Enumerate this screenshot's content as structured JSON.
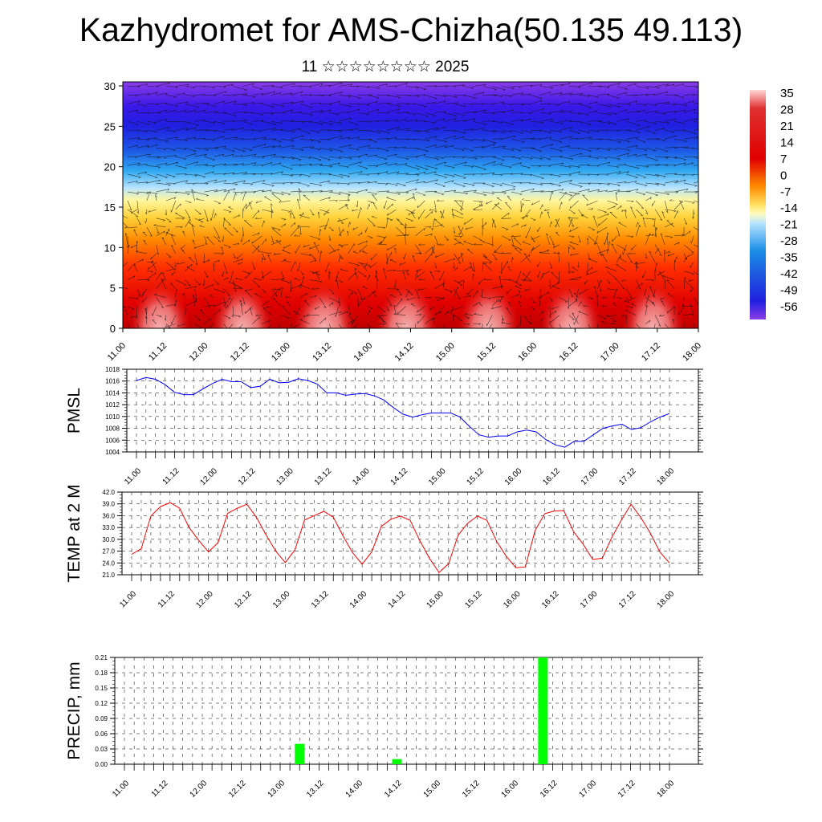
{
  "title": "Kazhydromet for AMS-Chizha(50.135 49.113)",
  "subtitle": "11 ☆☆☆☆☆☆☆☆ 2025",
  "colors": {
    "pmsl_line": "#0000ff",
    "temp_line": "#ff0000",
    "precip_bar": "#00ff00",
    "grid": "#000000"
  },
  "chart_data": [
    {
      "type": "heatmap",
      "name": "vertical-section",
      "y_ticks": [
        "0",
        "5",
        "10",
        "15",
        "20",
        "25",
        "30"
      ],
      "y_range": [
        0,
        30.5
      ],
      "x_ticks": [
        "11.00",
        "11.12",
        "12.00",
        "12.12",
        "13.00",
        "13.12",
        "14.00",
        "14.12",
        "15.00",
        "15.12",
        "16.00",
        "16.12",
        "17.00",
        "17.12",
        "18.00"
      ],
      "colorbar_labels": [
        "35",
        "28",
        "21",
        "14",
        "7",
        "0",
        "-7",
        "-14",
        "-21",
        "-28",
        "-35",
        "-42",
        "-49",
        "-56"
      ],
      "overlay": "wind vectors",
      "grid": false
    },
    {
      "type": "line",
      "name": "pmsl",
      "ylabel": "PMSL",
      "ylim": [
        1004,
        1018
      ],
      "y_ticks": [
        "1004",
        "1006",
        "1008",
        "1010",
        "1012",
        "1014",
        "1016",
        "1018"
      ],
      "x_ticks": [
        "11.00",
        "11.12",
        "12.00",
        "12.12",
        "13.00",
        "13.12",
        "14.00",
        "14.12",
        "15.00",
        "15.12",
        "16.00",
        "16.12",
        "17.00",
        "17.12",
        "18.00"
      ],
      "grid": true,
      "values": [
        1016.1,
        1016.6,
        1016.3,
        1015.4,
        1014.1,
        1013.7,
        1013.7,
        1014.7,
        1015.6,
        1016.3,
        1015.9,
        1015.9,
        1014.9,
        1015.1,
        1016.3,
        1015.7,
        1015.8,
        1016.4,
        1016.1,
        1015.5,
        1014.0,
        1014.0,
        1013.6,
        1013.8,
        1013.9,
        1013.5,
        1012.8,
        1011.5,
        1010.4,
        1009.9,
        1010.3,
        1010.6,
        1010.6,
        1010.6,
        1009.9,
        1008.3,
        1006.9,
        1006.5,
        1006.7,
        1006.7,
        1007.4,
        1007.7,
        1007.4,
        1006.1,
        1005.2,
        1004.8,
        1005.8,
        1005.8,
        1006.9,
        1008.0,
        1008.4,
        1008.7,
        1007.8,
        1008.1,
        1009.1,
        1009.9,
        1010.5
      ]
    },
    {
      "type": "line",
      "name": "temp",
      "ylabel": "TEMP at 2 M",
      "ylim": [
        21.0,
        42.0
      ],
      "y_ticks": [
        "21.0",
        "24.0",
        "27.0",
        "30.0",
        "33.0",
        "36.0",
        "39.0",
        "42.0"
      ],
      "x_ticks": [
        "11.00",
        "11.12",
        "12.00",
        "12.12",
        "13.00",
        "13.12",
        "14.00",
        "14.12",
        "15.00",
        "15.12",
        "16.00",
        "16.12",
        "17.00",
        "17.12",
        "18.00"
      ],
      "grid": true,
      "values": [
        26.2,
        27.6,
        35.9,
        38.3,
        39.3,
        37.9,
        32.9,
        29.7,
        26.8,
        29.2,
        36.6,
        37.9,
        38.9,
        35.6,
        31.1,
        27.0,
        24.1,
        27.3,
        34.9,
        36.0,
        37.1,
        35.6,
        30.9,
        26.6,
        23.7,
        26.8,
        33.3,
        35.1,
        35.9,
        34.8,
        29.7,
        25.2,
        21.6,
        23.8,
        31.1,
        34.1,
        35.9,
        34.8,
        29.5,
        25.7,
        22.8,
        23.0,
        32.2,
        36.5,
        37.2,
        37.3,
        32.0,
        28.8,
        24.9,
        25.2,
        30.5,
        34.9,
        38.9,
        35.6,
        31.6,
        26.8,
        24.0
      ]
    },
    {
      "type": "bar",
      "name": "precip",
      "ylabel": "PRECIP, mm",
      "ylim": [
        0,
        0.21
      ],
      "y_ticks": [
        "0.00",
        "0.03",
        "0.06",
        "0.09",
        "0.12",
        "0.15",
        "0.18",
        "0.21"
      ],
      "x_ticks": [
        "11.00",
        "11.12",
        "12.00",
        "12.12",
        "13.00",
        "13.12",
        "14.00",
        "14.12",
        "15.00",
        "15.12",
        "16.00",
        "16.12",
        "17.00",
        "17.12",
        "18.00"
      ],
      "grid": true,
      "bars": [
        {
          "x": 18,
          "value": 0.04
        },
        {
          "x": 28,
          "value": 0.01
        },
        {
          "x": 43,
          "value": 0.21
        }
      ]
    }
  ]
}
